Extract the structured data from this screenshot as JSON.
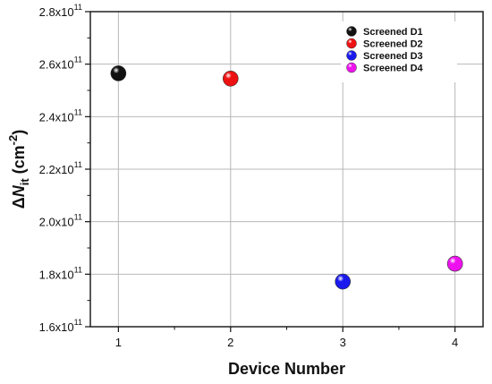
{
  "chart_data": {
    "type": "scatter",
    "title": "",
    "xlabel": "Device Number",
    "ylabel": {
      "prefix": "Δ",
      "symbol": "N",
      "subscript": "it",
      "unit_open": " (cm",
      "unit_exp": "-2",
      "unit_close": ")"
    },
    "xlim": [
      0.75,
      4.25
    ],
    "ylim": [
      160000000000.0,
      280000000000.0
    ],
    "x_ticks": [
      1,
      2,
      3,
      4
    ],
    "y_ticks": [
      {
        "value": 160000000000.0,
        "mantissa": "1.6x10",
        "exp": "11"
      },
      {
        "value": 180000000000.0,
        "mantissa": "1.8x10",
        "exp": "11"
      },
      {
        "value": 200000000000.0,
        "mantissa": "2.0x10",
        "exp": "11"
      },
      {
        "value": 220000000000.0,
        "mantissa": "2.2x10",
        "exp": "11"
      },
      {
        "value": 240000000000.0,
        "mantissa": "2.4x10",
        "exp": "11"
      },
      {
        "value": 260000000000.0,
        "mantissa": "2.6x10",
        "exp": "11"
      },
      {
        "value": 280000000000.0,
        "mantissa": "2.8x10",
        "exp": "11"
      }
    ],
    "grid": true,
    "legend_position": "top-right",
    "series": [
      {
        "name": "Screened D1",
        "color": "#111111",
        "x": [
          1
        ],
        "y": [
          256500000000.0
        ]
      },
      {
        "name": "Screened D2",
        "color": "#ee1111",
        "x": [
          2
        ],
        "y": [
          254500000000.0
        ]
      },
      {
        "name": "Screened D3",
        "color": "#1a1aee",
        "x": [
          3
        ],
        "y": [
          177200000000.0
        ]
      },
      {
        "name": "Screened D4",
        "color": "#ee11ee",
        "x": [
          4
        ],
        "y": [
          184000000000.0
        ]
      }
    ]
  }
}
